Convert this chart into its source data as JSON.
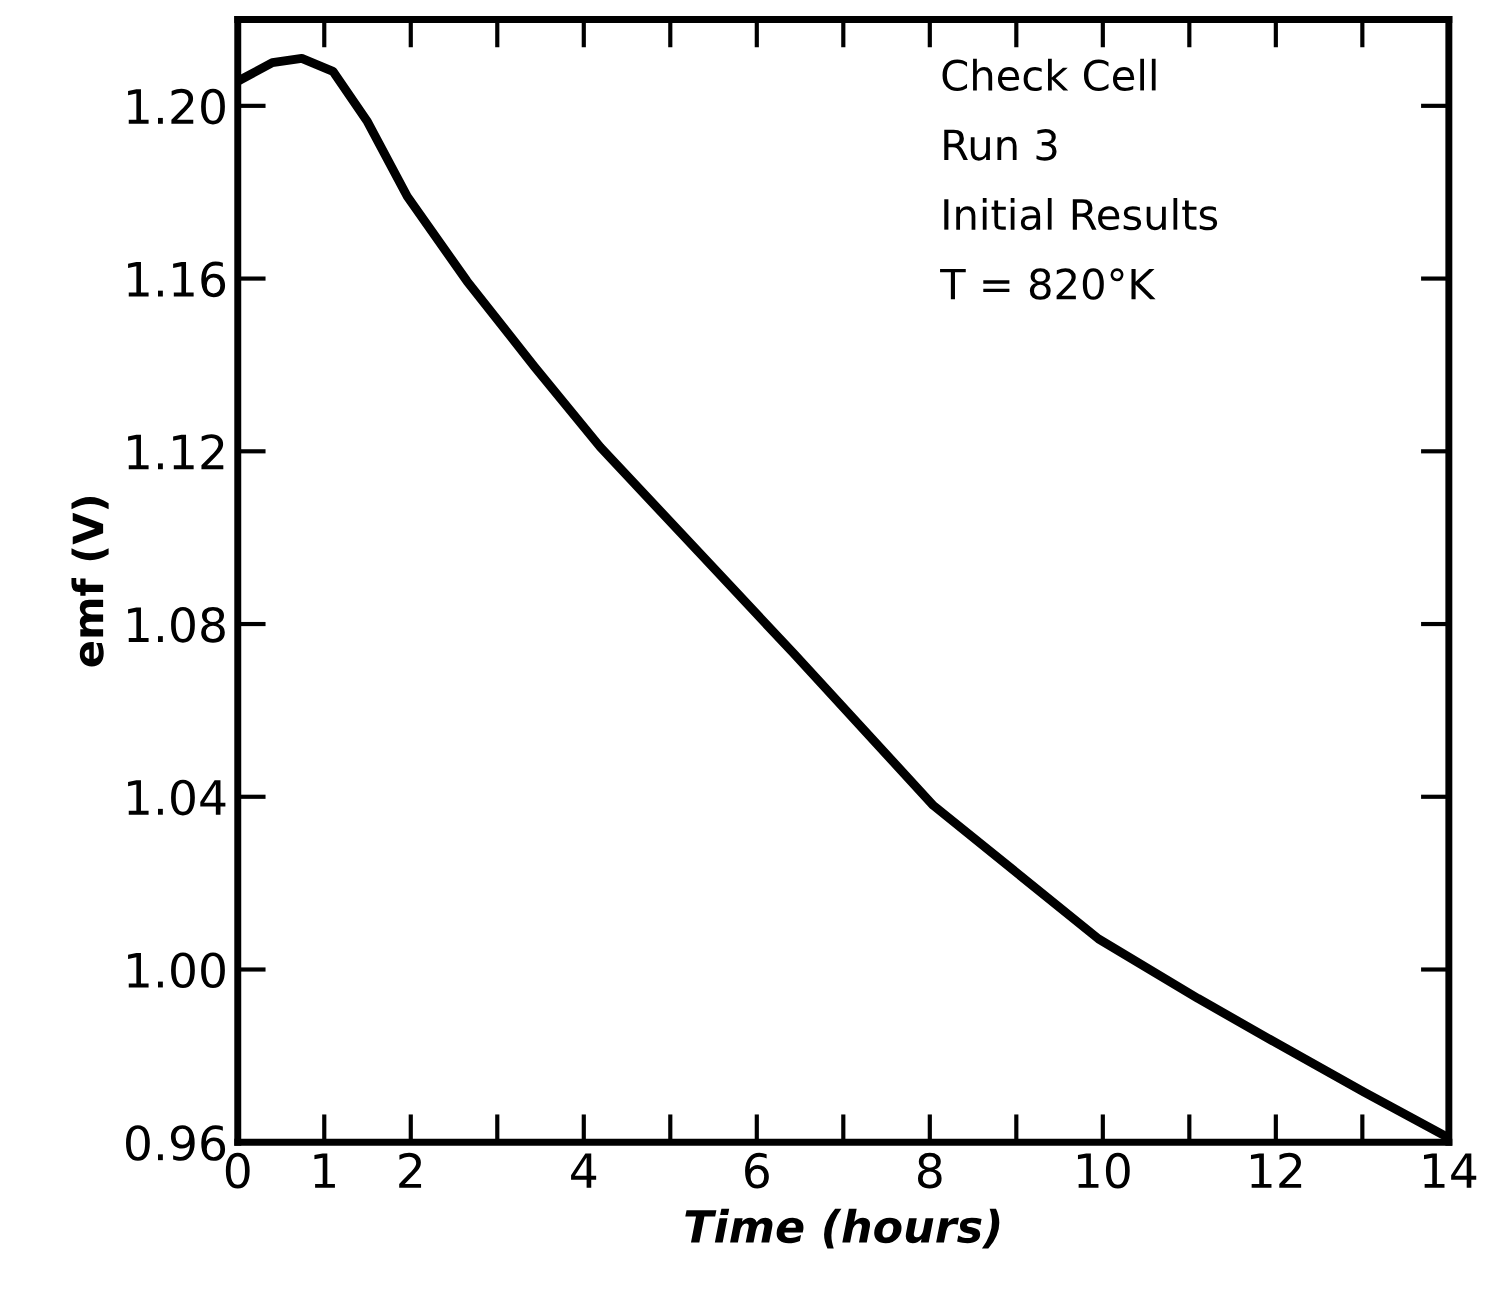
{
  "chart_data": {
    "type": "line",
    "xlabel": "Time (hours)",
    "ylabel": "emf (V)",
    "annotations": [
      "Check Cell",
      "Run 3",
      "Initial Results",
      "T = 820°K"
    ],
    "x": [
      0,
      0.4,
      0.74,
      1.1,
      1.5,
      1.96,
      2.65,
      3.43,
      4.19,
      5.35,
      6.43,
      8.04,
      9.95,
      11.1,
      12.03,
      13.02,
      14
    ],
    "series": [
      {
        "color": "#000000",
        "values": [
          1.2057,
          1.21,
          1.211,
          1.208,
          1.1963,
          1.179,
          1.1594,
          1.1396,
          1.121,
          1.0962,
          1.0731,
          1.038,
          1.0071,
          0.9933,
          0.9827,
          0.9716,
          0.961
        ]
      }
    ],
    "xlim": [
      0,
      14
    ],
    "ylim": [
      0.96,
      1.22
    ],
    "xticks": [
      0,
      1,
      2,
      {
        "value": 3,
        "label": null
      },
      4,
      {
        "value": 5,
        "label": null
      },
      6,
      {
        "value": 7,
        "label": null
      },
      8,
      {
        "value": 9,
        "label": null
      },
      10,
      {
        "value": 11,
        "label": null
      },
      12,
      {
        "value": 13,
        "label": null
      },
      14
    ],
    "yticks": [
      {
        "value": 0.96,
        "label": "0.96"
      },
      {
        "value": 1.0,
        "label": "1.00"
      },
      {
        "value": 1.04,
        "label": "1.04"
      },
      {
        "value": 1.08,
        "label": "1.08"
      },
      {
        "value": 1.12,
        "label": "1.12"
      },
      {
        "value": 1.16,
        "label": "1.16"
      },
      {
        "value": 1.2,
        "label": "1.20"
      }
    ],
    "grid": false,
    "legend": false,
    "marker": "none",
    "line_style": "solid"
  }
}
